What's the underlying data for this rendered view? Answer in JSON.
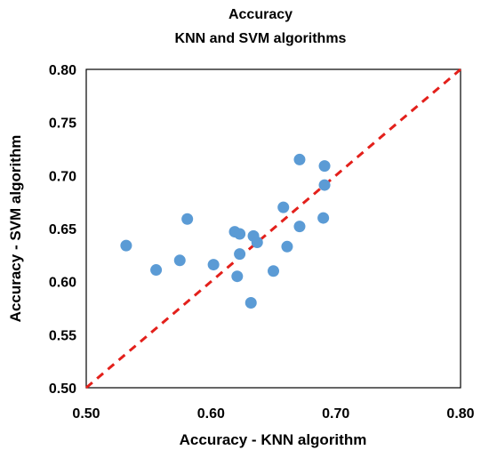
{
  "chart_data": {
    "type": "scatter",
    "title": "Accuracy",
    "subtitle": "KNN and SVM algorithms",
    "xlabel": "Accuracy - KNN algorithm",
    "ylabel": "Accuracy - SVM algorithm",
    "xlim": [
      0.5,
      0.8
    ],
    "ylim": [
      0.5,
      0.8
    ],
    "xticks": [
      "0.50",
      "0.60",
      "0.70",
      "0.80"
    ],
    "yticks": [
      "0.50",
      "0.55",
      "0.60",
      "0.65",
      "0.70",
      "0.75",
      "0.80"
    ],
    "grid": false,
    "legend": "none",
    "reference_line": {
      "style": "dashed",
      "color": "#e3201b",
      "from": [
        0.5,
        0.5
      ],
      "to": [
        0.8,
        0.8
      ]
    },
    "series": [
      {
        "color": "#5b9bd5",
        "points": [
          {
            "x": 0.532,
            "y": 0.634
          },
          {
            "x": 0.556,
            "y": 0.611
          },
          {
            "x": 0.575,
            "y": 0.62
          },
          {
            "x": 0.581,
            "y": 0.659
          },
          {
            "x": 0.602,
            "y": 0.616
          },
          {
            "x": 0.619,
            "y": 0.647
          },
          {
            "x": 0.621,
            "y": 0.605
          },
          {
            "x": 0.623,
            "y": 0.626
          },
          {
            "x": 0.623,
            "y": 0.645
          },
          {
            "x": 0.632,
            "y": 0.58
          },
          {
            "x": 0.634,
            "y": 0.643
          },
          {
            "x": 0.637,
            "y": 0.637
          },
          {
            "x": 0.65,
            "y": 0.61
          },
          {
            "x": 0.658,
            "y": 0.67
          },
          {
            "x": 0.661,
            "y": 0.633
          },
          {
            "x": 0.671,
            "y": 0.652
          },
          {
            "x": 0.671,
            "y": 0.715
          },
          {
            "x": 0.69,
            "y": 0.66
          },
          {
            "x": 0.691,
            "y": 0.691
          },
          {
            "x": 0.691,
            "y": 0.709
          }
        ]
      }
    ]
  }
}
